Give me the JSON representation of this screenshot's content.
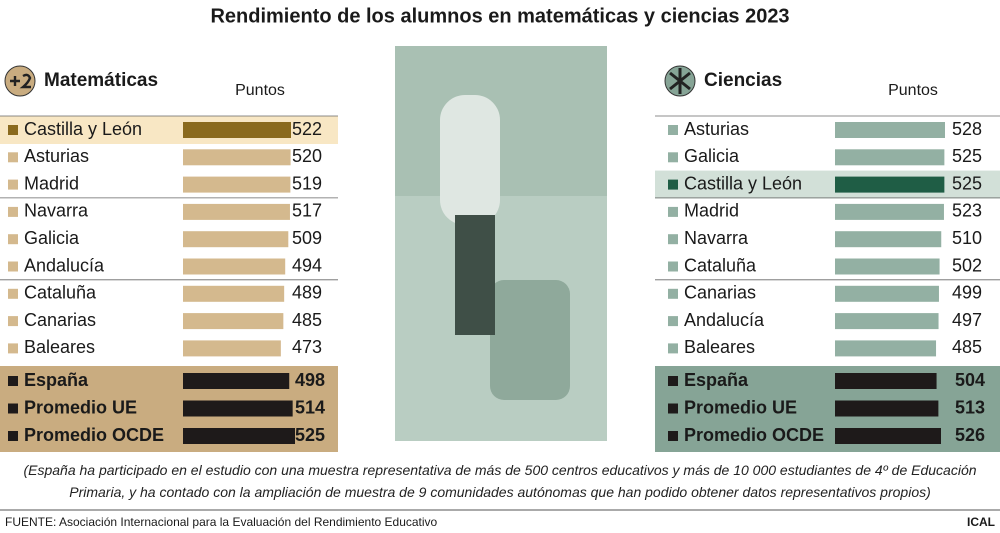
{
  "title": "Rendimiento de los alumnos en matemáticas y ciencias 2023",
  "chart_data": [
    {
      "type": "bar",
      "orientation": "horizontal",
      "title": "Matemáticas",
      "value_label": "Puntos",
      "categories": [
        "Castilla y León",
        "Asturias",
        "Madrid",
        "Navarra",
        "Galicia",
        "Andalucía",
        "Cataluña",
        "Canarias",
        "Baleares"
      ],
      "values": [
        522,
        520,
        519,
        517,
        509,
        494,
        489,
        485,
        473
      ],
      "colors": [
        "#8a6a1e",
        "#d4b98e",
        "#d4b98e",
        "#d4b98e",
        "#d4b98e",
        "#d4b98e",
        "#d4b98e",
        "#d4b98e",
        "#d4b98e"
      ],
      "summary_categories": [
        "España",
        "Promedio UE",
        "Promedio OCDE"
      ],
      "summary_values": [
        498,
        514,
        525
      ],
      "summary_color": "#1e1a1a",
      "highlight_background": "#f8e7c4",
      "summary_background": "#c9ac80"
    },
    {
      "type": "bar",
      "orientation": "horizontal",
      "title": "Ciencias",
      "value_label": "Puntos",
      "categories": [
        "Asturias",
        "Galicia",
        "Castilla y León",
        "Madrid",
        "Navarra",
        "Cataluña",
        "Canarias",
        "Andalucía",
        "Baleares"
      ],
      "values": [
        528,
        525,
        525,
        523,
        510,
        502,
        499,
        497,
        485
      ],
      "colors": [
        "#93b0a3",
        "#93b0a3",
        "#1f5d45",
        "#93b0a3",
        "#93b0a3",
        "#93b0a3",
        "#93b0a3",
        "#93b0a3",
        "#93b0a3"
      ],
      "summary_categories": [
        "España",
        "Promedio UE",
        "Promedio OCDE"
      ],
      "summary_values": [
        504,
        513,
        526
      ],
      "summary_color": "#1e1a1a",
      "highlight_background": "#d2e0d8",
      "summary_background": "#86a496"
    }
  ],
  "note": "(España ha participado en el estudio con una muestra representativa de más de 500 centros educativos y más de 10 000 estudiantes de 4º de Educación Primaria, y ha contado con la ampliación de muestra de 9 comunidades autónomas que han podido obtener datos representativos propios)",
  "source": "FUENTE: Asociación Internacional para la Evaluación del Rendimiento Educativo",
  "credit": "ICAL"
}
